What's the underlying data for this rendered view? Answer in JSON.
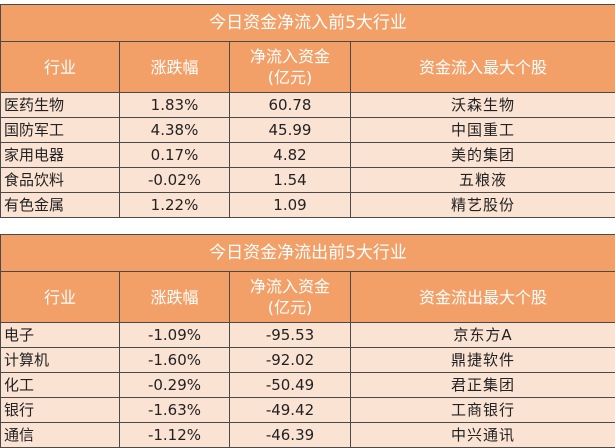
{
  "inflow": {
    "title": "今日资金净流入前5大行业",
    "headers": {
      "industry": "行业",
      "change": "涨跌幅",
      "netflow_line1": "净流入资金",
      "netflow_line2": "(亿元)",
      "top_stock": "资金流入最大个股"
    },
    "rows": [
      {
        "industry": "医药生物",
        "change": "1.83%",
        "netflow": "60.78",
        "stock": "沃森生物"
      },
      {
        "industry": "国防军工",
        "change": "4.38%",
        "netflow": "45.99",
        "stock": "中国重工"
      },
      {
        "industry": "家用电器",
        "change": "0.17%",
        "netflow": "4.82",
        "stock": "美的集团"
      },
      {
        "industry": "食品饮料",
        "change": "-0.02%",
        "netflow": "1.54",
        "stock": "五粮液"
      },
      {
        "industry": "有色金属",
        "change": "1.22%",
        "netflow": "1.09",
        "stock": "精艺股份"
      }
    ]
  },
  "outflow": {
    "title": "今日资金净流出前5大行业",
    "headers": {
      "industry": "行业",
      "change": "涨跌幅",
      "netflow_line1": "净流入资金",
      "netflow_line2": "(亿元)",
      "top_stock": "资金流出最大个股"
    },
    "rows": [
      {
        "industry": "电子",
        "change": "-1.09%",
        "netflow": "-95.53",
        "stock": "京东方A"
      },
      {
        "industry": "计算机",
        "change": "-1.60%",
        "netflow": "-92.02",
        "stock": "鼎捷软件"
      },
      {
        "industry": "化工",
        "change": "-0.29%",
        "netflow": "-50.49",
        "stock": "君正集团"
      },
      {
        "industry": "银行",
        "change": "-1.63%",
        "netflow": "-49.42",
        "stock": "工商银行"
      },
      {
        "industry": "通信",
        "change": "-1.12%",
        "netflow": "-46.39",
        "stock": "中兴通讯"
      }
    ]
  },
  "colors": {
    "header_bg": "#f3a068",
    "row_bg": "#fbe3d4",
    "border": "#4a4a4a"
  }
}
